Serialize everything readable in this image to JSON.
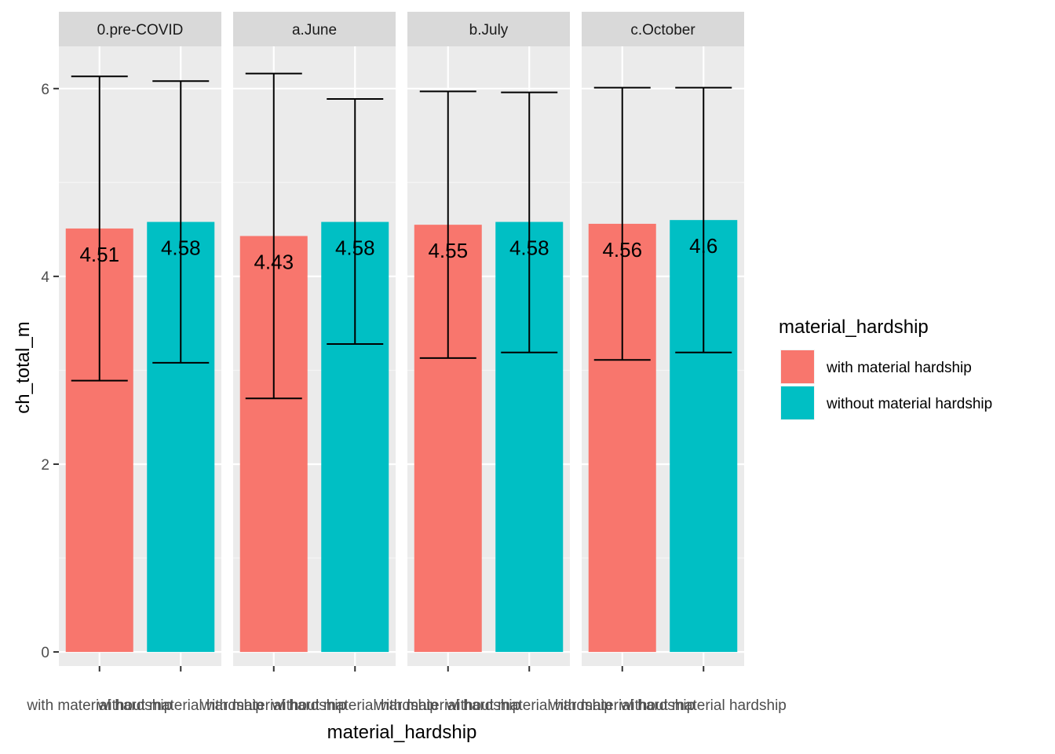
{
  "chart_data": {
    "type": "bar",
    "facets": [
      "0.pre-COVID",
      "a.June",
      "b.July",
      "c.October"
    ],
    "categories": [
      "with material hardship",
      "without material hardship"
    ],
    "values": [
      [
        4.51,
        4.58
      ],
      [
        4.43,
        4.58
      ],
      [
        4.55,
        4.58
      ],
      [
        4.56,
        4.6
      ]
    ],
    "value_labels": [
      [
        "4.51",
        "4.58"
      ],
      [
        "4.43",
        "4.58"
      ],
      [
        "4.55",
        "4.58"
      ],
      [
        "4.56",
        "4.6"
      ]
    ],
    "error_low": [
      [
        2.89,
        3.08
      ],
      [
        2.7,
        3.28
      ],
      [
        3.13,
        3.19
      ],
      [
        3.11,
        3.19
      ]
    ],
    "error_high": [
      [
        6.13,
        6.08
      ],
      [
        6.16,
        5.89
      ],
      [
        5.97,
        5.96
      ],
      [
        6.01,
        6.01
      ]
    ],
    "xlabel": "material_hardship",
    "ylabel": "ch_total_m",
    "ylim": [
      -0.15,
      6.45
    ],
    "yticks": [
      0,
      2,
      4,
      6
    ],
    "grid": true,
    "legend": {
      "title": "material_hardship",
      "position": "right",
      "entries": [
        "with material hardship",
        "without material hardship"
      ]
    },
    "colors": {
      "with material hardship": "#F8766D",
      "without material hardship": "#00BFC4"
    }
  }
}
